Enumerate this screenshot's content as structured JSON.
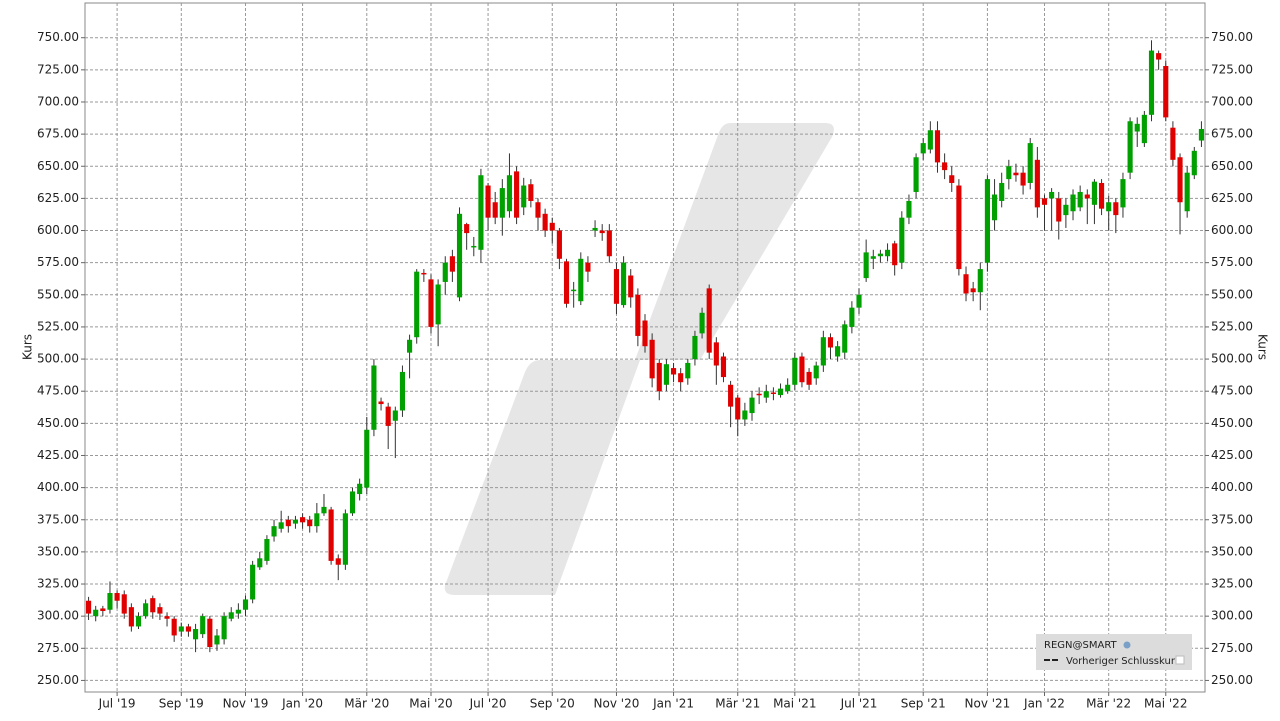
{
  "chart_data": {
    "type": "candlestick",
    "y_label": "Kurs",
    "ylim": [
      241,
      777
    ],
    "yticks": [
      {
        "value": 250,
        "label": "250.00"
      },
      {
        "value": 275,
        "label": "275.00"
      },
      {
        "value": 300,
        "label": "300.00"
      },
      {
        "value": 325,
        "label": "325.00"
      },
      {
        "value": 350,
        "label": "350.00"
      },
      {
        "value": 375,
        "label": "375.00"
      },
      {
        "value": 400,
        "label": "400.00"
      },
      {
        "value": 425,
        "label": "425.00"
      },
      {
        "value": 450,
        "label": "450.00"
      },
      {
        "value": 475,
        "label": "475.00"
      },
      {
        "value": 500,
        "label": "500.00"
      },
      {
        "value": 525,
        "label": "525.00"
      },
      {
        "value": 550,
        "label": "550.00"
      },
      {
        "value": 575,
        "label": "575.00"
      },
      {
        "value": 600,
        "label": "600.00"
      },
      {
        "value": 625,
        "label": "625.00"
      },
      {
        "value": 650,
        "label": "650.00"
      },
      {
        "value": 675,
        "label": "675.00"
      },
      {
        "value": 700,
        "label": "700.00"
      },
      {
        "value": 725,
        "label": "725.00"
      },
      {
        "value": 750,
        "label": "750.00"
      }
    ],
    "grid": true,
    "categories": [
      null,
      null,
      null,
      null,
      "Jul '19",
      null,
      null,
      null,
      null,
      null,
      null,
      null,
      null,
      "Sep '19",
      null,
      null,
      null,
      null,
      null,
      null,
      null,
      null,
      "Nov '19",
      null,
      null,
      null,
      null,
      null,
      null,
      null,
      "Jan '20",
      null,
      null,
      null,
      null,
      null,
      null,
      null,
      null,
      "Mär '20",
      null,
      null,
      null,
      null,
      null,
      null,
      null,
      null,
      "Mai '20",
      null,
      null,
      null,
      null,
      null,
      null,
      null,
      "Jul '20",
      null,
      null,
      null,
      null,
      null,
      null,
      null,
      null,
      "Sep '20",
      null,
      null,
      null,
      null,
      null,
      null,
      null,
      null,
      "Nov '20",
      null,
      null,
      null,
      null,
      null,
      null,
      null,
      "Jan '21",
      null,
      null,
      null,
      null,
      null,
      null,
      null,
      null,
      "Mär '21",
      null,
      null,
      null,
      null,
      null,
      null,
      null,
      "Mai '21",
      null,
      null,
      null,
      null,
      null,
      null,
      null,
      null,
      "Jul '21",
      null,
      null,
      null,
      null,
      null,
      null,
      null,
      null,
      "Sep '21",
      null,
      null,
      null,
      null,
      null,
      null,
      null,
      null,
      "Nov '21",
      null,
      null,
      null,
      null,
      null,
      null,
      null,
      "Jan '22",
      null,
      null,
      null,
      null,
      null,
      null,
      null,
      null,
      "Mär '22",
      null,
      null,
      null,
      null,
      null,
      null,
      null,
      "Mai '22",
      null,
      null,
      null,
      null,
      null
    ],
    "series": [
      {
        "name": "REGN@SMART",
        "up_color": "#00a000",
        "down_color": "#e00000",
        "open": [
          312,
          300,
          306,
          305,
          318,
          317,
          307,
          292,
          300,
          314,
          307,
          300,
          298,
          288,
          292,
          282,
          286,
          298,
          278,
          282,
          298,
          302,
          305,
          313,
          338,
          343,
          362,
          368,
          375,
          372,
          377,
          375,
          370,
          380,
          383,
          345,
          340,
          380,
          395,
          400,
          445,
          467,
          463,
          452,
          460,
          505,
          517,
          567,
          562,
          527,
          560,
          580,
          548,
          605,
          587,
          585,
          635,
          622,
          610,
          615,
          646,
          618,
          636,
          622,
          613,
          606,
          600,
          576,
          553,
          545,
          575,
          600,
          600,
          600,
          570,
          542,
          565,
          550,
          530,
          515,
          497,
          480,
          493,
          489,
          485,
          500,
          520,
          555,
          513,
          502,
          480,
          470,
          453,
          458,
          473,
          470,
          474,
          472,
          475,
          480,
          502,
          490,
          485,
          495,
          517,
          502,
          505,
          525,
          540,
          563,
          578,
          580,
          580,
          590,
          575,
          610,
          630,
          660,
          663,
          678,
          653,
          643,
          635,
          566,
          555,
          552,
          575,
          608,
          623,
          640,
          645,
          645,
          637,
          655,
          625,
          625,
          625,
          612,
          615,
          618,
          628,
          620,
          637,
          615,
          622,
          618,
          645,
          677,
          668,
          690,
          738,
          728,
          680,
          657,
          615,
          643,
          670
        ],
        "high": [
          315,
          308,
          308,
          327,
          320,
          320,
          310,
          303,
          313,
          316,
          310,
          303,
          300,
          295,
          294,
          294,
          302,
          300,
          290,
          303,
          307,
          310,
          316,
          343,
          350,
          363,
          375,
          382,
          378,
          378,
          380,
          378,
          388,
          395,
          385,
          348,
          383,
          400,
          407,
          455,
          500,
          470,
          466,
          463,
          495,
          519,
          570,
          570,
          566,
          562,
          580,
          585,
          618,
          606,
          595,
          648,
          637,
          630,
          640,
          660,
          650,
          641,
          640,
          625,
          617,
          610,
          602,
          578,
          560,
          583,
          580,
          608,
          605,
          605,
          575,
          580,
          570,
          555,
          535,
          520,
          500,
          500,
          497,
          493,
          500,
          522,
          540,
          558,
          517,
          505,
          483,
          472,
          466,
          475,
          478,
          480,
          478,
          481,
          485,
          505,
          505,
          493,
          498,
          522,
          520,
          514,
          530,
          545,
          555,
          593,
          585,
          585,
          590,
          592,
          615,
          628,
          660,
          672,
          685,
          685,
          660,
          650,
          640,
          572,
          560,
          575,
          643,
          640,
          645,
          655,
          652,
          650,
          672,
          665,
          628,
          633,
          630,
          625,
          632,
          635,
          632,
          640,
          640,
          627,
          625,
          645,
          688,
          688,
          693,
          748,
          740,
          732,
          685,
          660,
          650,
          665,
          685
        ],
        "low": [
          297,
          296,
          300,
          302,
          306,
          298,
          288,
          290,
          298,
          298,
          297,
          292,
          280,
          284,
          284,
          272,
          283,
          272,
          273,
          278,
          296,
          298,
          300,
          310,
          336,
          340,
          358,
          365,
          365,
          368,
          368,
          365,
          365,
          378,
          340,
          328,
          336,
          378,
          390,
          395,
          440,
          460,
          430,
          423,
          455,
          485,
          512,
          560,
          520,
          510,
          550,
          560,
          545,
          585,
          580,
          575,
          600,
          605,
          596,
          610,
          605,
          612,
          618,
          600,
          595,
          590,
          570,
          540,
          540,
          542,
          560,
          595,
          592,
          575,
          535,
          540,
          540,
          510,
          505,
          478,
          468,
          475,
          482,
          475,
          480,
          495,
          516,
          500,
          480,
          482,
          447,
          440,
          448,
          452,
          465,
          466,
          468,
          470,
          473,
          476,
          478,
          476,
          480,
          490,
          500,
          498,
          500,
          520,
          535,
          560,
          570,
          575,
          576,
          565,
          570,
          605,
          625,
          655,
          660,
          645,
          640,
          630,
          565,
          545,
          545,
          538,
          568,
          600,
          618,
          632,
          638,
          628,
          632,
          610,
          600,
          600,
          593,
          602,
          608,
          615,
          605,
          605,
          612,
          600,
          598,
          610,
          640,
          665,
          665,
          685,
          725,
          685,
          650,
          597,
          610,
          640,
          665
        ],
        "close": [
          302,
          305,
          304,
          318,
          312,
          302,
          292,
          300,
          310,
          303,
          302,
          298,
          285,
          292,
          288,
          290,
          300,
          276,
          285,
          300,
          303,
          305,
          313,
          340,
          345,
          360,
          370,
          373,
          370,
          375,
          373,
          370,
          380,
          385,
          343,
          340,
          380,
          397,
          403,
          445,
          495,
          465,
          448,
          460,
          490,
          515,
          568,
          566,
          525,
          558,
          575,
          568,
          613,
          598,
          588,
          643,
          610,
          610,
          633,
          643,
          610,
          635,
          623,
          610,
          600,
          600,
          578,
          543,
          554,
          578,
          568,
          602,
          598,
          580,
          543,
          575,
          548,
          518,
          510,
          485,
          475,
          496,
          488,
          482,
          497,
          518,
          536,
          505,
          495,
          486,
          463,
          453,
          460,
          470,
          472,
          475,
          473,
          477,
          480,
          501,
          482,
          480,
          495,
          517,
          509,
          510,
          527,
          540,
          550,
          583,
          580,
          582,
          585,
          573,
          610,
          623,
          657,
          668,
          678,
          653,
          647,
          637,
          570,
          551,
          552,
          570,
          640,
          628,
          637,
          650,
          643,
          635,
          668,
          618,
          620,
          630,
          607,
          620,
          628,
          630,
          625,
          638,
          617,
          622,
          612,
          640,
          685,
          683,
          690,
          740,
          733,
          688,
          655,
          622,
          645,
          662,
          679
        ]
      }
    ],
    "previous_close": {
      "name": "Vorheriger Schlusskurs"
    }
  }
}
